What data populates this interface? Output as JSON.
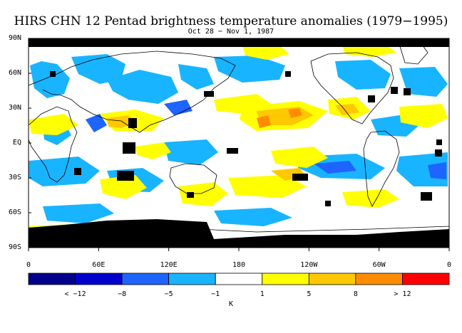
{
  "title": "HIRS CHN 12 Pentad brightness temperature anomalies (1979−1995)",
  "subtitle": "Oct 28 − Nov 1, 1987",
  "lat_labels": [
    "90N",
    "60N",
    "30N",
    "EQ",
    "30S",
    "60S",
    "90S"
  ],
  "lon_labels": [
    "0",
    "60E",
    "120E",
    "180",
    "120W",
    "60W",
    "0"
  ],
  "colorbar": {
    "unit": "K",
    "labels": [
      "< −12",
      "−8",
      "−5",
      "−1",
      "1",
      "5",
      "8",
      "> 12"
    ],
    "colors": [
      "#00008b",
      "#0000cd",
      "#1e64ff",
      "#19b4ff",
      "#ffffff",
      "#ffff00",
      "#ffc800",
      "#ff8c00",
      "#ff0000"
    ]
  },
  "colors": {
    "cold": "#19b4ff",
    "cold_strong": "#1e64ff",
    "warm": "#ffff00",
    "warm_strong": "#ffc800",
    "warm_extreme": "#ff8c00",
    "missing": "#000000"
  }
}
